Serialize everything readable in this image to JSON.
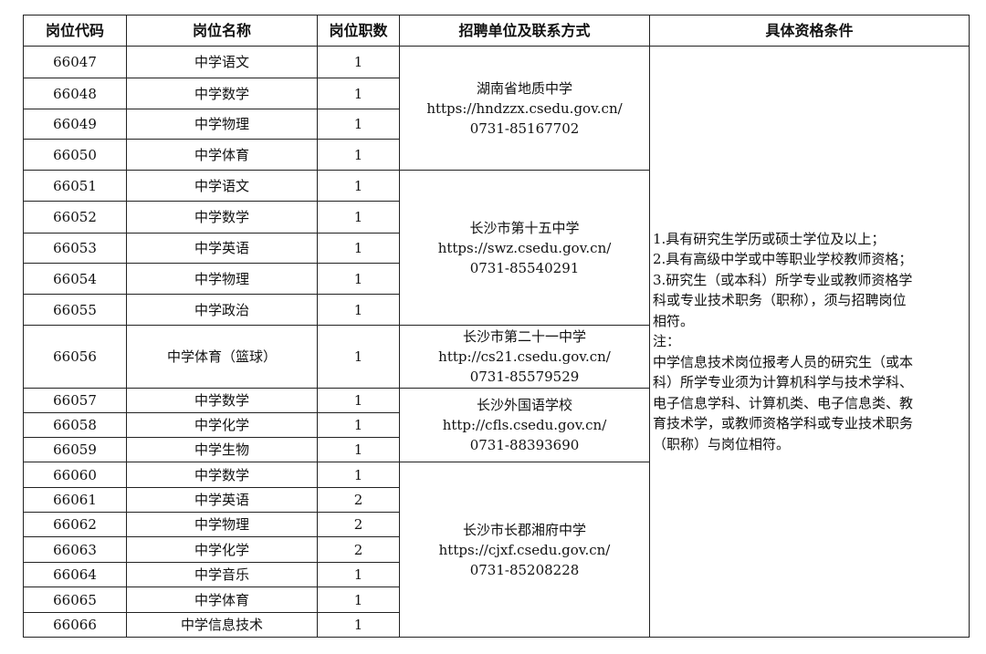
{
  "headers": [
    "岗位代码",
    "岗位名称",
    "岗位职数",
    "招聘单位及联系方式",
    "具体资格条件"
  ],
  "rows": [
    {
      "code": "66047",
      "name": "中学语文",
      "count": "1"
    },
    {
      "code": "66048",
      "name": "中学数学",
      "count": "1"
    },
    {
      "code": "66049",
      "name": "中学物理",
      "count": "1"
    },
    {
      "code": "66050",
      "name": "中学体育",
      "count": "1"
    },
    {
      "code": "66051",
      "name": "中学语文",
      "count": "1"
    },
    {
      "code": "66052",
      "name": "中学数学",
      "count": "1"
    },
    {
      "code": "66053",
      "name": "中学英语",
      "count": "1"
    },
    {
      "code": "66054",
      "name": "中学物理",
      "count": "1"
    },
    {
      "code": "66055",
      "name": "中学政治",
      "count": "1"
    },
    {
      "code": "66056",
      "name": "中学体育（篮球）",
      "count": "1"
    },
    {
      "code": "66057",
      "name": "中学数学",
      "count": "1"
    },
    {
      "code": "66058",
      "name": "中学化学",
      "count": "1"
    },
    {
      "code": "66059",
      "name": "中学生物",
      "count": "1"
    },
    {
      "code": "66060",
      "name": "中学数学",
      "count": "1"
    },
    {
      "code": "66061",
      "name": "中学英语",
      "count": "2"
    },
    {
      "code": "66062",
      "name": "中学物理",
      "count": "2"
    },
    {
      "code": "66063",
      "name": "中学化学",
      "count": "2"
    },
    {
      "code": "66064",
      "name": "中学音乐",
      "count": "1"
    },
    {
      "code": "66065",
      "name": "中学体育",
      "count": "1"
    },
    {
      "code": "66066",
      "name": "中学信息技术",
      "count": "1"
    }
  ],
  "units": [
    {
      "name": "湖南省地质中学",
      "url": "https://hndzzx.csedu.gov.cn/",
      "phone": "0731-85167702",
      "start": 0,
      "span": 4
    },
    {
      "name": "长沙市第十五中学",
      "url": "https://swz.csedu.gov.cn/",
      "phone": "0731-85540291",
      "start": 4,
      "span": 5
    },
    {
      "name": "长沙市第二十一中学",
      "url": "http://cs21.csedu.gov.cn/",
      "phone": "0731-85579529",
      "start": 9,
      "span": 1
    },
    {
      "name": "长沙外国语学校",
      "url": "http://cfls.csedu.gov.cn/",
      "phone": "0731-88393690",
      "start": 10,
      "span": 3
    },
    {
      "name": "长沙市长郡湘府中学",
      "url": "https://cjxf.csedu.gov.cn/",
      "phone": "0731-85208228",
      "start": 13,
      "span": 7
    }
  ],
  "qualification_lines": [
    "1.具有研究生学历或硕士学位及以上；",
    "2.具有高级中学或中等职业学校教师资格；",
    "3.研究生（或本科）所学专业或教师资格学",
    "科或专业技术职务（职称），须与招聘岗位",
    "相符。",
    "注：",
    "中学信息技术岗位报考人员的研究生（或本",
    "科）所学专业须为计算机科学与技术学科、",
    "电子信息学科、计算机类、电子信息类、教",
    "育技术学，或教师资格学科或专业技术职务",
    "（职称）与岗位相符。"
  ]
}
